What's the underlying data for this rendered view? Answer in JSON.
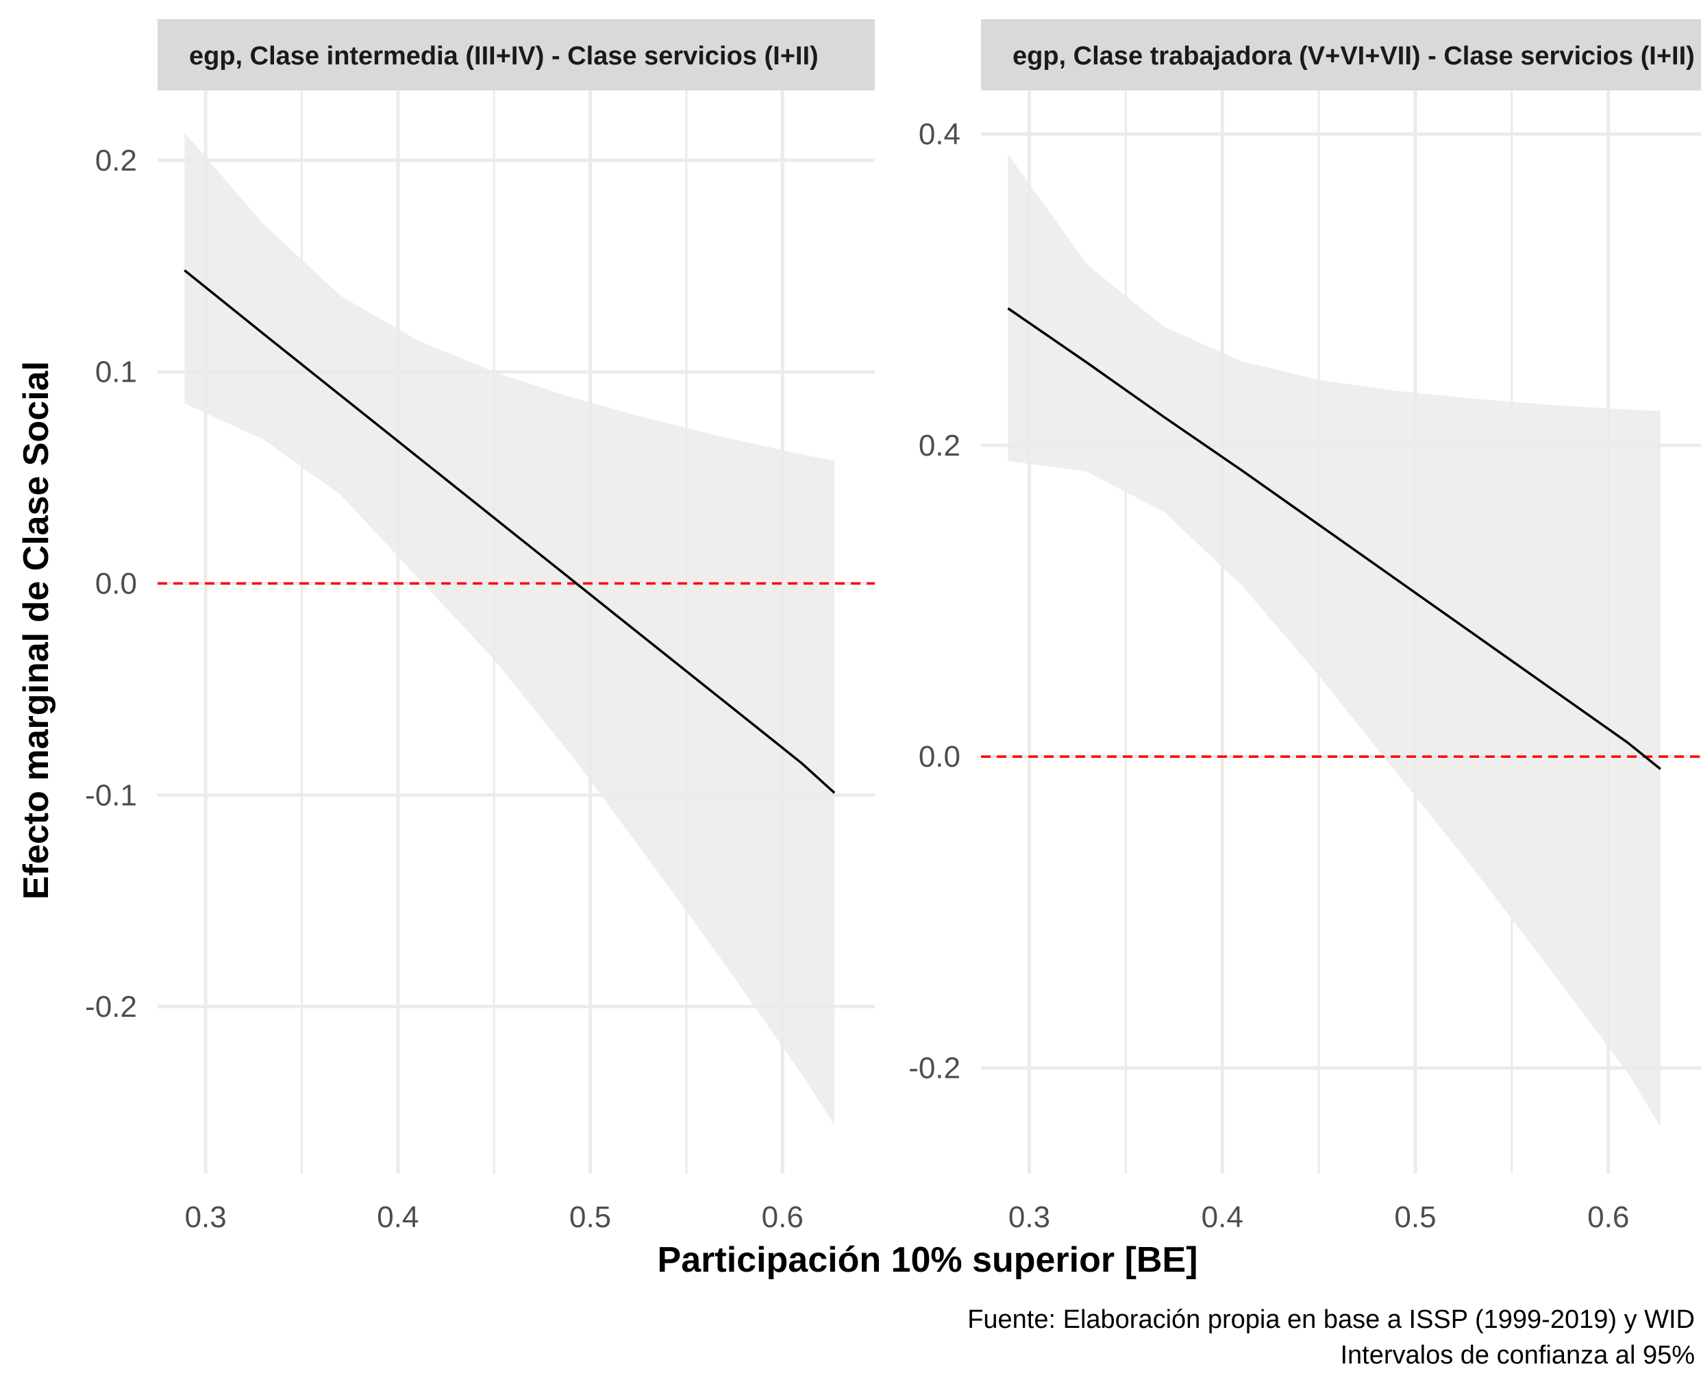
{
  "chart_data": {
    "type": "line",
    "xlabel": "Participación 10% superior [BE]",
    "ylabel": "Efecto marginal de Clase Social",
    "caption": [
      "Fuente: Elaboración propia en base a ISSP (1999-2019) y WID",
      "Intervalos de confianza al 95%"
    ],
    "x_ticks": [
      "0.3",
      "0.4",
      "0.5",
      "0.6"
    ],
    "reference_line": {
      "y": 0,
      "color": "#ff0000",
      "style": "dashed"
    },
    "colors": {
      "line": "#000000",
      "ribbon": "#ebebeb",
      "grid": "#ebebeb",
      "strip": "#d9d9d9"
    },
    "grid": true,
    "panels": [
      {
        "strip": "egp, Clase intermedia (III+IV) - Clase servicios (I+II)",
        "xlim": [
          0.275,
          0.648
        ],
        "ylim": [
          -0.279,
          0.233
        ],
        "y_ticks": [
          "0.2",
          "0.1",
          "0.0",
          "-0.1",
          "-0.2"
        ],
        "y_tick_values": [
          0.2,
          0.1,
          0.0,
          -0.1,
          -0.2
        ],
        "x": [
          0.289,
          0.33,
          0.37,
          0.41,
          0.45,
          0.49,
          0.53,
          0.57,
          0.61,
          0.627
        ],
        "estimate": [
          0.148,
          0.118,
          0.089,
          0.06,
          0.031,
          0.002,
          -0.027,
          -0.056,
          -0.085,
          -0.099
        ],
        "upper": [
          0.213,
          0.17,
          0.136,
          0.115,
          0.1,
          0.088,
          0.078,
          0.069,
          0.061,
          0.058
        ],
        "lower": [
          0.085,
          0.068,
          0.042,
          0.003,
          -0.036,
          -0.081,
          -0.13,
          -0.18,
          -0.232,
          -0.256
        ]
      },
      {
        "strip": "egp, Clase trabajadora (V+VI+VII) - Clase servicios (I+II)",
        "xlim": [
          0.275,
          0.648
        ],
        "ylim": [
          -0.268,
          0.428
        ],
        "y_ticks": [
          "0.4",
          "0.2",
          "0.0",
          "-0.2"
        ],
        "y_tick_values": [
          0.4,
          0.2,
          0.0,
          -0.2
        ],
        "x": [
          0.289,
          0.33,
          0.37,
          0.41,
          0.45,
          0.49,
          0.53,
          0.57,
          0.61,
          0.627
        ],
        "estimate": [
          0.288,
          0.253,
          0.218,
          0.184,
          0.149,
          0.114,
          0.079,
          0.044,
          0.009,
          -0.008
        ],
        "upper": [
          0.387,
          0.316,
          0.276,
          0.254,
          0.242,
          0.235,
          0.23,
          0.226,
          0.223,
          0.222
        ],
        "lower": [
          0.19,
          0.183,
          0.157,
          0.11,
          0.052,
          -0.01,
          -0.072,
          -0.137,
          -0.203,
          -0.238
        ]
      }
    ]
  }
}
